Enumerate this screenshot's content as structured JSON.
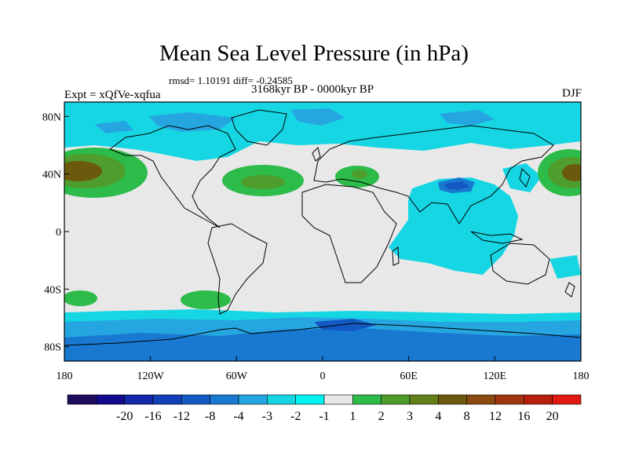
{
  "title": "Mean Sea Level Pressure (in hPa)",
  "stats": "rmsd= 1.10191 diff= -0.24585",
  "period": "3168kyr BP - 0000kyr BP",
  "experiment": "Expt = xQfVe-xqfua",
  "season": "DJF",
  "lat_ticks": [
    {
      "label": "80N",
      "lat": 80
    },
    {
      "label": "40N",
      "lat": 40
    },
    {
      "label": "0",
      "lat": 0
    },
    {
      "label": "40S",
      "lat": -40
    },
    {
      "label": "80S",
      "lat": -80
    }
  ],
  "lon_ticks": [
    {
      "label": "180",
      "lon": -180
    },
    {
      "label": "120W",
      "lon": -120
    },
    {
      "label": "60W",
      "lon": -60
    },
    {
      "label": "0",
      "lon": 0
    },
    {
      "label": "60E",
      "lon": 60
    },
    {
      "label": "120E",
      "lon": 120
    },
    {
      "label": "180",
      "lon": 180
    }
  ],
  "colorbar": {
    "colors": [
      "#1f0c5e",
      "#120a8a",
      "#1128a8",
      "#123fb5",
      "#1359c4",
      "#1979d1",
      "#26a6e0",
      "#16d6e4",
      "#00f2f2",
      "#e8e8e8",
      "#2dbb4a",
      "#4f9d2c",
      "#637f1a",
      "#6b5a0e",
      "#8a4a10",
      "#a0380f",
      "#b8200d",
      "#e01a10"
    ],
    "labels": [
      "-20",
      "-16",
      "-12",
      "-8",
      "-4",
      "-3",
      "-2",
      "-1",
      "1",
      "2",
      "3",
      "4",
      "8",
      "12",
      "16",
      "20"
    ]
  },
  "palette": {
    "land_neutral": "#e8e8e8",
    "cyan": "#16d6e4",
    "light_blue": "#26a6e0",
    "blue": "#1979d1",
    "mid_blue": "#1359c4",
    "dark_blue": "#123fb5",
    "green": "#2dbb4a",
    "olive": "#4f9d2c",
    "brown": "#6b5a0e"
  }
}
